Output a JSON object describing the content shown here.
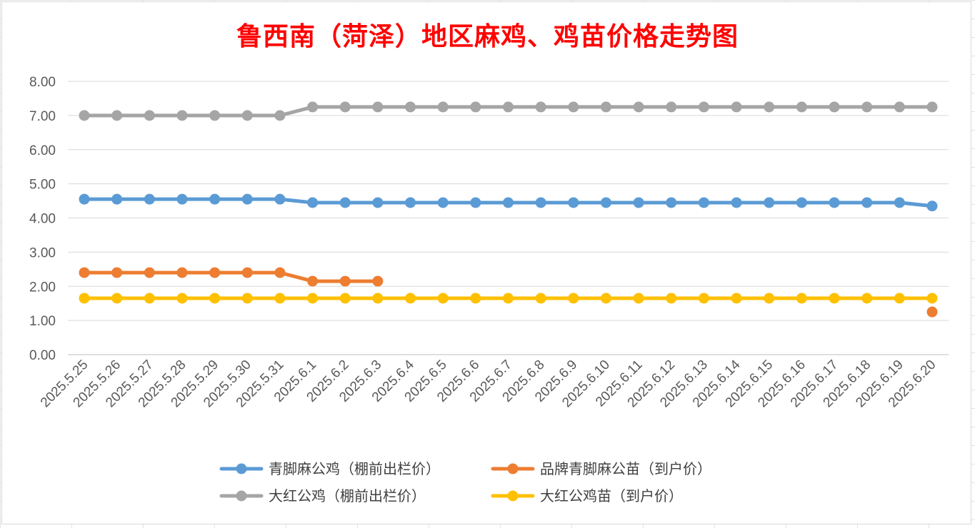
{
  "chart_data": {
    "type": "line",
    "title": "鲁西南（菏泽）地区麻鸡、鸡苗价格走势图",
    "ylim": [
      0,
      8
    ],
    "yticks": [
      "0.00",
      "1.00",
      "2.00",
      "3.00",
      "4.00",
      "5.00",
      "6.00",
      "7.00",
      "8.00"
    ],
    "grid": true,
    "legend_position": "bottom",
    "categories": [
      "2025.5.25",
      "2025.5.26",
      "2025.5.27",
      "2025.5.28",
      "2025.5.29",
      "2025.5.30",
      "2025.5.31",
      "2025.6.1",
      "2025.6.2",
      "2025.6.3",
      "2025.6.4",
      "2025.6.5",
      "2025.6.6",
      "2025.6.7",
      "2025.6.8",
      "2025.6.9",
      "2025.6.10",
      "2025.6.11",
      "2025.6.12",
      "2025.6.13",
      "2025.6.14",
      "2025.6.15",
      "2025.6.16",
      "2025.6.17",
      "2025.6.18",
      "2025.6.19",
      "2025.6.20"
    ],
    "series": [
      {
        "name": "青脚麻公鸡（棚前出栏价）",
        "color": "#5b9bd5",
        "values": [
          4.55,
          4.55,
          4.55,
          4.55,
          4.55,
          4.55,
          4.55,
          4.45,
          4.45,
          4.45,
          4.45,
          4.45,
          4.45,
          4.45,
          4.45,
          4.45,
          4.45,
          4.45,
          4.45,
          4.45,
          4.45,
          4.45,
          4.45,
          4.45,
          4.45,
          4.45,
          4.35
        ]
      },
      {
        "name": "品牌青脚麻公苗（到户价）",
        "color": "#ed7d31",
        "values": [
          2.4,
          2.4,
          2.4,
          2.4,
          2.4,
          2.4,
          2.4,
          2.15,
          2.15,
          2.15,
          null,
          null,
          null,
          null,
          null,
          null,
          null,
          null,
          null,
          null,
          null,
          null,
          null,
          null,
          null,
          null,
          1.25
        ]
      },
      {
        "name": "大红公鸡（棚前出栏价）",
        "color": "#a5a5a5",
        "values": [
          7.0,
          7.0,
          7.0,
          7.0,
          7.0,
          7.0,
          7.0,
          7.25,
          7.25,
          7.25,
          7.25,
          7.25,
          7.25,
          7.25,
          7.25,
          7.25,
          7.25,
          7.25,
          7.25,
          7.25,
          7.25,
          7.25,
          7.25,
          7.25,
          7.25,
          7.25,
          7.25
        ]
      },
      {
        "name": "大红公鸡苗（到户价）",
        "color": "#ffc000",
        "values": [
          1.65,
          1.65,
          1.65,
          1.65,
          1.65,
          1.65,
          1.65,
          1.65,
          1.65,
          1.65,
          1.65,
          1.65,
          1.65,
          1.65,
          1.65,
          1.65,
          1.65,
          1.65,
          1.65,
          1.65,
          1.65,
          1.65,
          1.65,
          1.65,
          1.65,
          1.65,
          1.65
        ]
      }
    ]
  }
}
